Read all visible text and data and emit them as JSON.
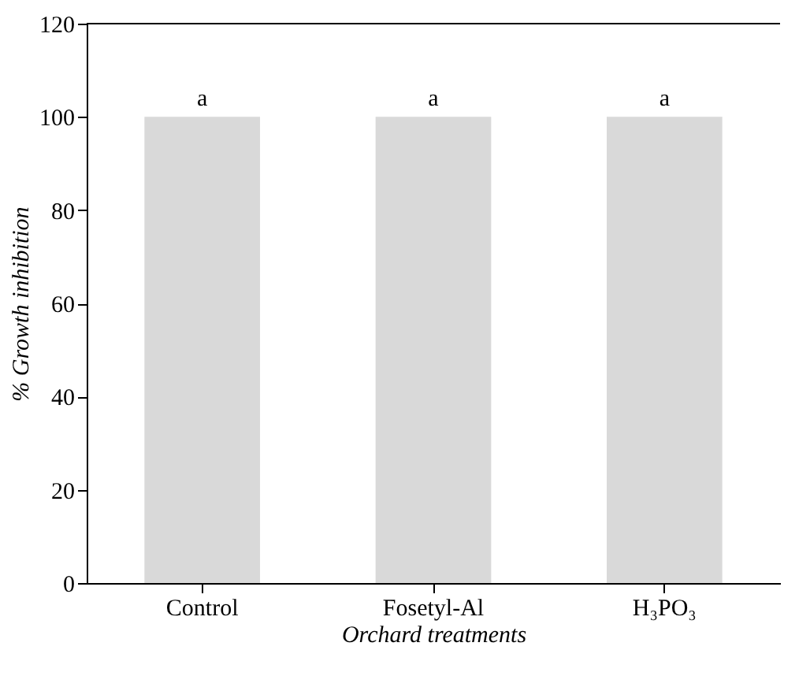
{
  "chart_data": {
    "type": "bar",
    "xlabel": "Orchard treatments",
    "ylabel": "% Growth inhibition",
    "categories": [
      "Control",
      "Fosetyl-Al",
      "H₃PO₃"
    ],
    "values": [
      100,
      100,
      100
    ],
    "color": "#d9d9d9",
    "ylim": [
      0,
      120
    ],
    "yticks": [
      0,
      20,
      40,
      60,
      80,
      100,
      120
    ],
    "grid": false,
    "annotations": [
      {
        "text": "a",
        "x": "Control",
        "y": 100
      },
      {
        "text": "a",
        "x": "Fosetyl-Al",
        "y": 100
      },
      {
        "text": "a",
        "x": "H₃PO₃",
        "y": 100
      }
    ]
  }
}
